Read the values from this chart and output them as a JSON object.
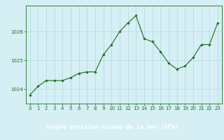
{
  "x": [
    0,
    1,
    2,
    3,
    4,
    5,
    6,
    7,
    8,
    9,
    10,
    11,
    12,
    13,
    14,
    15,
    16,
    17,
    18,
    19,
    20,
    21,
    22,
    23
  ],
  "y": [
    1023.8,
    1024.1,
    1024.3,
    1024.3,
    1024.3,
    1024.4,
    1024.55,
    1024.6,
    1024.6,
    1025.2,
    1025.55,
    1026.0,
    1026.3,
    1026.55,
    1025.75,
    1025.65,
    1025.3,
    1024.9,
    1024.7,
    1024.8,
    1025.1,
    1025.55,
    1025.55,
    1026.3
  ],
  "line_color": "#1a6e1a",
  "marker": "D",
  "marker_size": 1.8,
  "bg_color": "#d5eff5",
  "grid_color": "#a8cfd8",
  "xlabel": "Graphe pression niveau de la mer (hPa)",
  "xlabel_color": "#1a6e1a",
  "xlabel_fontsize": 6.0,
  "tick_color": "#1a6e1a",
  "tick_fontsize": 5.0,
  "yticks": [
    1024,
    1025,
    1026
  ],
  "ylim": [
    1023.5,
    1026.9
  ],
  "xlim": [
    -0.5,
    23.5
  ],
  "bottom_bar_color": "#2a6e2a",
  "spine_color": "#1a6e1a"
}
